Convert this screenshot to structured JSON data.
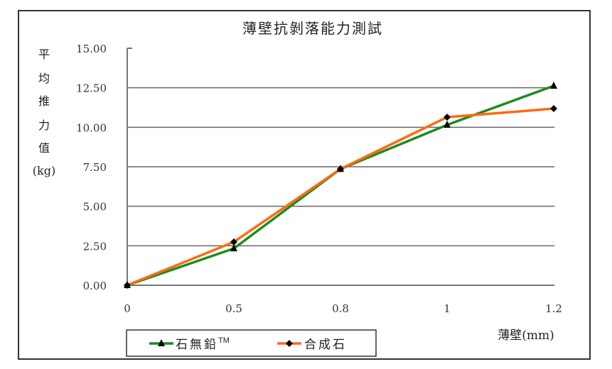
{
  "chart_data": {
    "type": "line",
    "title": "薄壁抗剝落能力測試",
    "xlabel": "薄壁(mm)",
    "ylabel": "平均推力值(kg)",
    "ylabel_chars": [
      "平",
      "均",
      "推",
      "力",
      "值",
      "(kg)"
    ],
    "categories": [
      "0",
      "0.5",
      "0.8",
      "1",
      "1.2"
    ],
    "ylim": [
      0,
      15
    ],
    "yticks": [
      "0.00",
      "2.50",
      "5.00",
      "7.50",
      "10.00",
      "12.50",
      "15.00"
    ],
    "grid": true,
    "legend_position": "bottom-left",
    "series": [
      {
        "name": "石無鉛™",
        "label": "石無鉛",
        "superscript": "TM",
        "color": "#1E8C1E",
        "marker": "triangle",
        "values": [
          0,
          2.33,
          7.36,
          10.15,
          12.62
        ]
      },
      {
        "name": "合成石",
        "label": "合成石",
        "color": "#FF6A13",
        "marker": "diamond",
        "values": [
          0,
          2.74,
          7.36,
          10.64,
          11.18
        ]
      }
    ]
  }
}
